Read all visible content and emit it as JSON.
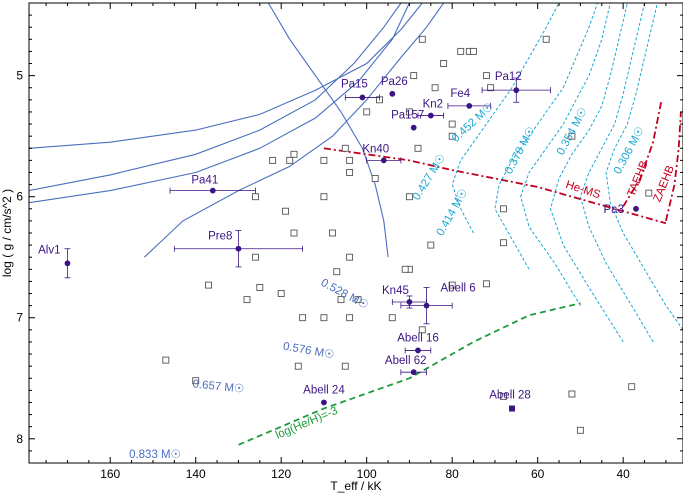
{
  "chart_data": {
    "type": "scatter",
    "title": "",
    "xlabel": "T_eff / kK",
    "ylabel": "log ( g / cm/s^2 )",
    "xlim": [
      179,
      26
    ],
    "ylim": [
      8.2,
      4.4
    ],
    "x_reversed": true,
    "y_reversed": true,
    "x_ticks": [
      160,
      140,
      120,
      100,
      80,
      60,
      40
    ],
    "y_ticks": [
      5,
      6,
      7,
      8
    ],
    "grid": false,
    "colors": {
      "star": "#3b1585",
      "comparison": "#555555",
      "track_h": "#4a6fbf",
      "track_he": "#1aa8d4",
      "helium_lines": "#c00020",
      "abundance_line": "#1e9b3c"
    },
    "stars": [
      {
        "name": "Alv1",
        "x": 170,
        "y": 6.55,
        "xerr": 0,
        "yerr": 0.12,
        "marker": "circle"
      },
      {
        "name": "Pa41",
        "x": 136,
        "y": 5.95,
        "xerr": 10,
        "yerr": 0,
        "marker": "circle"
      },
      {
        "name": "Pre8",
        "x": 130,
        "y": 6.43,
        "xerr": 15,
        "yerr": 0.15,
        "marker": "circle"
      },
      {
        "name": "Pa15",
        "x": 101,
        "y": 5.18,
        "xerr": 4,
        "yerr": 0,
        "marker": "circle"
      },
      {
        "name": "Pa26",
        "x": 94,
        "y": 5.15,
        "xerr": 0,
        "yerr": 0,
        "marker": "circle"
      },
      {
        "name": "Pa157",
        "x": 89,
        "y": 5.43,
        "xerr": 0,
        "yerr": 0,
        "marker": "circle"
      },
      {
        "name": "Kn2",
        "x": 85,
        "y": 5.33,
        "xerr": 3,
        "yerr": 0,
        "marker": "circle"
      },
      {
        "name": "Fe4",
        "x": 76,
        "y": 5.25,
        "xerr": 5,
        "yerr": 0,
        "marker": "circle"
      },
      {
        "name": "Pa12",
        "x": 65,
        "y": 5.12,
        "xerr": 8,
        "yerr": 0.1,
        "marker": "circle"
      },
      {
        "name": "Kn40",
        "x": 96,
        "y": 5.7,
        "xerr": 4,
        "yerr": 0,
        "marker": "circle"
      },
      {
        "name": "Pa3",
        "x": 37,
        "y": 6.1,
        "xerr": 0,
        "yerr": 0,
        "marker": "circle"
      },
      {
        "name": "Kn45",
        "x": 90,
        "y": 6.87,
        "xerr": 4,
        "yerr": 0.05,
        "marker": "circle"
      },
      {
        "name": "Abell 6",
        "x": 86,
        "y": 6.9,
        "xerr": 6,
        "yerr": 0.15,
        "marker": "circle"
      },
      {
        "name": "Abell 16",
        "x": 88,
        "y": 7.27,
        "xerr": 3,
        "yerr": 0,
        "marker": "circle"
      },
      {
        "name": "Abell 62",
        "x": 89,
        "y": 7.45,
        "xerr": 3,
        "yerr": 0,
        "marker": "circle"
      },
      {
        "name": "Abell 24",
        "x": 110,
        "y": 7.7,
        "xerr": 0,
        "yerr": 0,
        "marker": "circle"
      },
      {
        "name": "Abell 28",
        "x": 66,
        "y": 7.75,
        "xerr": 0,
        "yerr": 0,
        "marker": "square"
      }
    ],
    "comparison": [
      [
        87,
        4.7
      ],
      [
        78,
        4.8
      ],
      [
        76,
        4.8
      ],
      [
        75,
        4.8
      ],
      [
        58,
        4.7
      ],
      [
        82,
        4.9
      ],
      [
        89,
        5.0
      ],
      [
        72,
        5.0
      ],
      [
        71,
        5.1
      ],
      [
        97,
        5.2
      ],
      [
        84,
        5.1
      ],
      [
        90,
        5.3
      ],
      [
        100,
        5.3
      ],
      [
        80,
        5.4
      ],
      [
        80,
        5.5
      ],
      [
        88,
        5.6
      ],
      [
        105,
        5.6
      ],
      [
        117,
        5.65
      ],
      [
        122,
        5.7
      ],
      [
        118,
        5.7
      ],
      [
        104,
        5.7
      ],
      [
        98,
        5.85
      ],
      [
        52,
        5.5
      ],
      [
        110,
        5.7
      ],
      [
        104,
        5.8
      ],
      [
        126,
        6.0
      ],
      [
        110,
        6.0
      ],
      [
        90,
        6.0
      ],
      [
        119,
        6.12
      ],
      [
        68,
        6.1
      ],
      [
        117,
        6.3
      ],
      [
        108,
        6.3
      ],
      [
        68,
        6.38
      ],
      [
        126,
        6.5
      ],
      [
        104,
        6.5
      ],
      [
        90,
        6.6
      ],
      [
        85,
        6.4
      ],
      [
        107,
        6.62
      ],
      [
        137,
        6.73
      ],
      [
        125,
        6.75
      ],
      [
        120,
        6.8
      ],
      [
        128,
        6.85
      ],
      [
        80,
        6.73
      ],
      [
        72,
        6.72
      ],
      [
        102,
        6.85
      ],
      [
        91,
        6.6
      ],
      [
        106,
        6.85
      ],
      [
        115,
        7.0
      ],
      [
        110,
        7.0
      ],
      [
        104,
        7.0
      ],
      [
        94,
        7.0
      ],
      [
        87,
        7.1
      ],
      [
        147,
        7.35
      ],
      [
        116,
        7.4
      ],
      [
        105,
        7.4
      ],
      [
        140,
        7.52
      ],
      [
        38,
        7.57
      ],
      [
        68,
        7.65
      ],
      [
        52,
        7.63
      ],
      [
        50,
        7.93
      ],
      [
        34,
        5.97
      ]
    ],
    "tracks_h": [
      {
        "name": "0.528 M☉",
        "points": [
          [
            179,
            5.6
          ],
          [
            160,
            5.55
          ],
          [
            140,
            5.45
          ],
          [
            125,
            5.32
          ],
          [
            112,
            5.12
          ],
          [
            100,
            4.9
          ],
          [
            92,
            4.62
          ],
          [
            87,
            4.4
          ]
        ]
      },
      {
        "name": "0.576 M☉",
        "points": [
          [
            179,
            5.95
          ],
          [
            160,
            5.82
          ],
          [
            140,
            5.65
          ],
          [
            125,
            5.45
          ],
          [
            112,
            5.2
          ],
          [
            103,
            4.9
          ],
          [
            96,
            4.6
          ],
          [
            92,
            4.4
          ]
        ]
      },
      {
        "name": "0.657 M☉",
        "points": [
          [
            179,
            6.05
          ],
          [
            160,
            5.95
          ],
          [
            140,
            5.8
          ],
          [
            125,
            5.6
          ],
          [
            112,
            5.35
          ],
          [
            102,
            5.05
          ],
          [
            94,
            4.7
          ],
          [
            90,
            4.4
          ]
        ]
      },
      {
        "name": "0.833 M☉",
        "points": [
          [
            152,
            6.5
          ],
          [
            143,
            6.2
          ],
          [
            130,
            5.95
          ],
          [
            118,
            5.75
          ],
          [
            108,
            5.5
          ],
          [
            100,
            5.2
          ],
          [
            92,
            4.85
          ],
          [
            86,
            4.6
          ],
          [
            82,
            4.4
          ]
        ]
      },
      {
        "name": "",
        "points": [
          [
            95,
            6.5
          ],
          [
            96,
            6.2
          ],
          [
            98,
            5.9
          ],
          [
            101,
            5.6
          ],
          [
            106,
            5.3
          ],
          [
            112,
            5.0
          ],
          [
            118,
            4.7
          ],
          [
            123,
            4.4
          ]
        ]
      }
    ],
    "tracks_he": [
      {
        "name": "0.452 M☉",
        "points": [
          [
            75,
            6.3
          ],
          [
            78,
            6.1
          ],
          [
            80,
            5.9
          ],
          [
            78,
            5.7
          ],
          [
            74,
            5.5
          ],
          [
            70,
            5.3
          ],
          [
            66,
            5.1
          ],
          [
            62,
            4.85
          ],
          [
            58,
            4.6
          ],
          [
            55,
            4.4
          ]
        ]
      },
      {
        "name": "0.427 M☉",
        "points": [
          [
            62,
            6.6
          ],
          [
            66,
            6.35
          ],
          [
            70,
            6.1
          ],
          [
            69,
            5.9
          ],
          [
            66,
            5.7
          ],
          [
            62,
            5.5
          ],
          [
            58,
            5.3
          ],
          [
            54,
            5.1
          ],
          [
            51,
            4.85
          ],
          [
            48,
            4.6
          ],
          [
            46,
            4.4
          ]
        ]
      },
      {
        "name": "0.414 M☉",
        "points": [
          [
            50,
            6.9
          ],
          [
            56,
            6.55
          ],
          [
            62,
            6.25
          ],
          [
            64,
            6.0
          ],
          [
            62,
            5.8
          ],
          [
            58,
            5.6
          ],
          [
            54,
            5.4
          ],
          [
            51,
            5.2
          ],
          [
            48,
            5.0
          ],
          [
            45,
            4.7
          ],
          [
            43,
            4.4
          ]
        ]
      },
      {
        "name": "0.378 M☉",
        "points": [
          [
            40,
            7.2
          ],
          [
            48,
            6.75
          ],
          [
            54,
            6.4
          ],
          [
            57,
            6.1
          ],
          [
            55,
            5.85
          ],
          [
            52,
            5.65
          ],
          [
            48,
            5.45
          ],
          [
            45,
            5.25
          ],
          [
            43,
            5.0
          ],
          [
            41,
            4.7
          ],
          [
            39,
            4.4
          ]
        ]
      },
      {
        "name": "0.354 M☉",
        "points": [
          [
            33,
            7.2
          ],
          [
            38,
            6.9
          ],
          [
            44,
            6.55
          ],
          [
            48,
            6.25
          ],
          [
            50,
            6.0
          ],
          [
            48,
            5.8
          ],
          [
            45,
            5.6
          ],
          [
            42,
            5.4
          ],
          [
            40,
            5.15
          ],
          [
            38,
            4.85
          ],
          [
            36,
            4.55
          ],
          [
            35,
            4.4
          ]
        ]
      },
      {
        "name": "0.306 M☉",
        "points": [
          [
            26,
            7.1
          ],
          [
            30,
            6.9
          ],
          [
            35,
            6.6
          ],
          [
            40,
            6.3
          ],
          [
            43,
            6.05
          ],
          [
            44,
            5.8
          ],
          [
            42,
            5.6
          ],
          [
            39,
            5.4
          ],
          [
            37,
            5.15
          ],
          [
            35,
            4.85
          ],
          [
            33,
            4.55
          ],
          [
            32,
            4.4
          ]
        ]
      }
    ],
    "he_ms": {
      "label": "He-MS",
      "points": [
        [
          110,
          5.6
        ],
        [
          100,
          5.65
        ],
        [
          90,
          5.7
        ],
        [
          80,
          5.78
        ],
        [
          70,
          5.85
        ],
        [
          60,
          5.92
        ],
        [
          50,
          6.02
        ],
        [
          40,
          6.12
        ],
        [
          30,
          6.22
        ]
      ]
    },
    "taehb": {
      "label": "TAEHB",
      "points": [
        [
          40,
          6.08
        ],
        [
          36,
          5.85
        ],
        [
          33,
          5.55
        ],
        [
          31,
          5.2
        ]
      ]
    },
    "zaehb": {
      "label": "ZAEHB",
      "points": [
        [
          30,
          6.2
        ],
        [
          28,
          5.9
        ],
        [
          27,
          5.6
        ],
        [
          26.5,
          5.3
        ]
      ]
    },
    "he_h_line": {
      "label": "log(He/H)=-3",
      "points": [
        [
          130,
          8.05
        ],
        [
          110,
          7.75
        ],
        [
          90,
          7.5
        ],
        [
          75,
          7.2
        ],
        [
          62,
          6.98
        ],
        [
          50,
          6.88
        ]
      ]
    }
  }
}
